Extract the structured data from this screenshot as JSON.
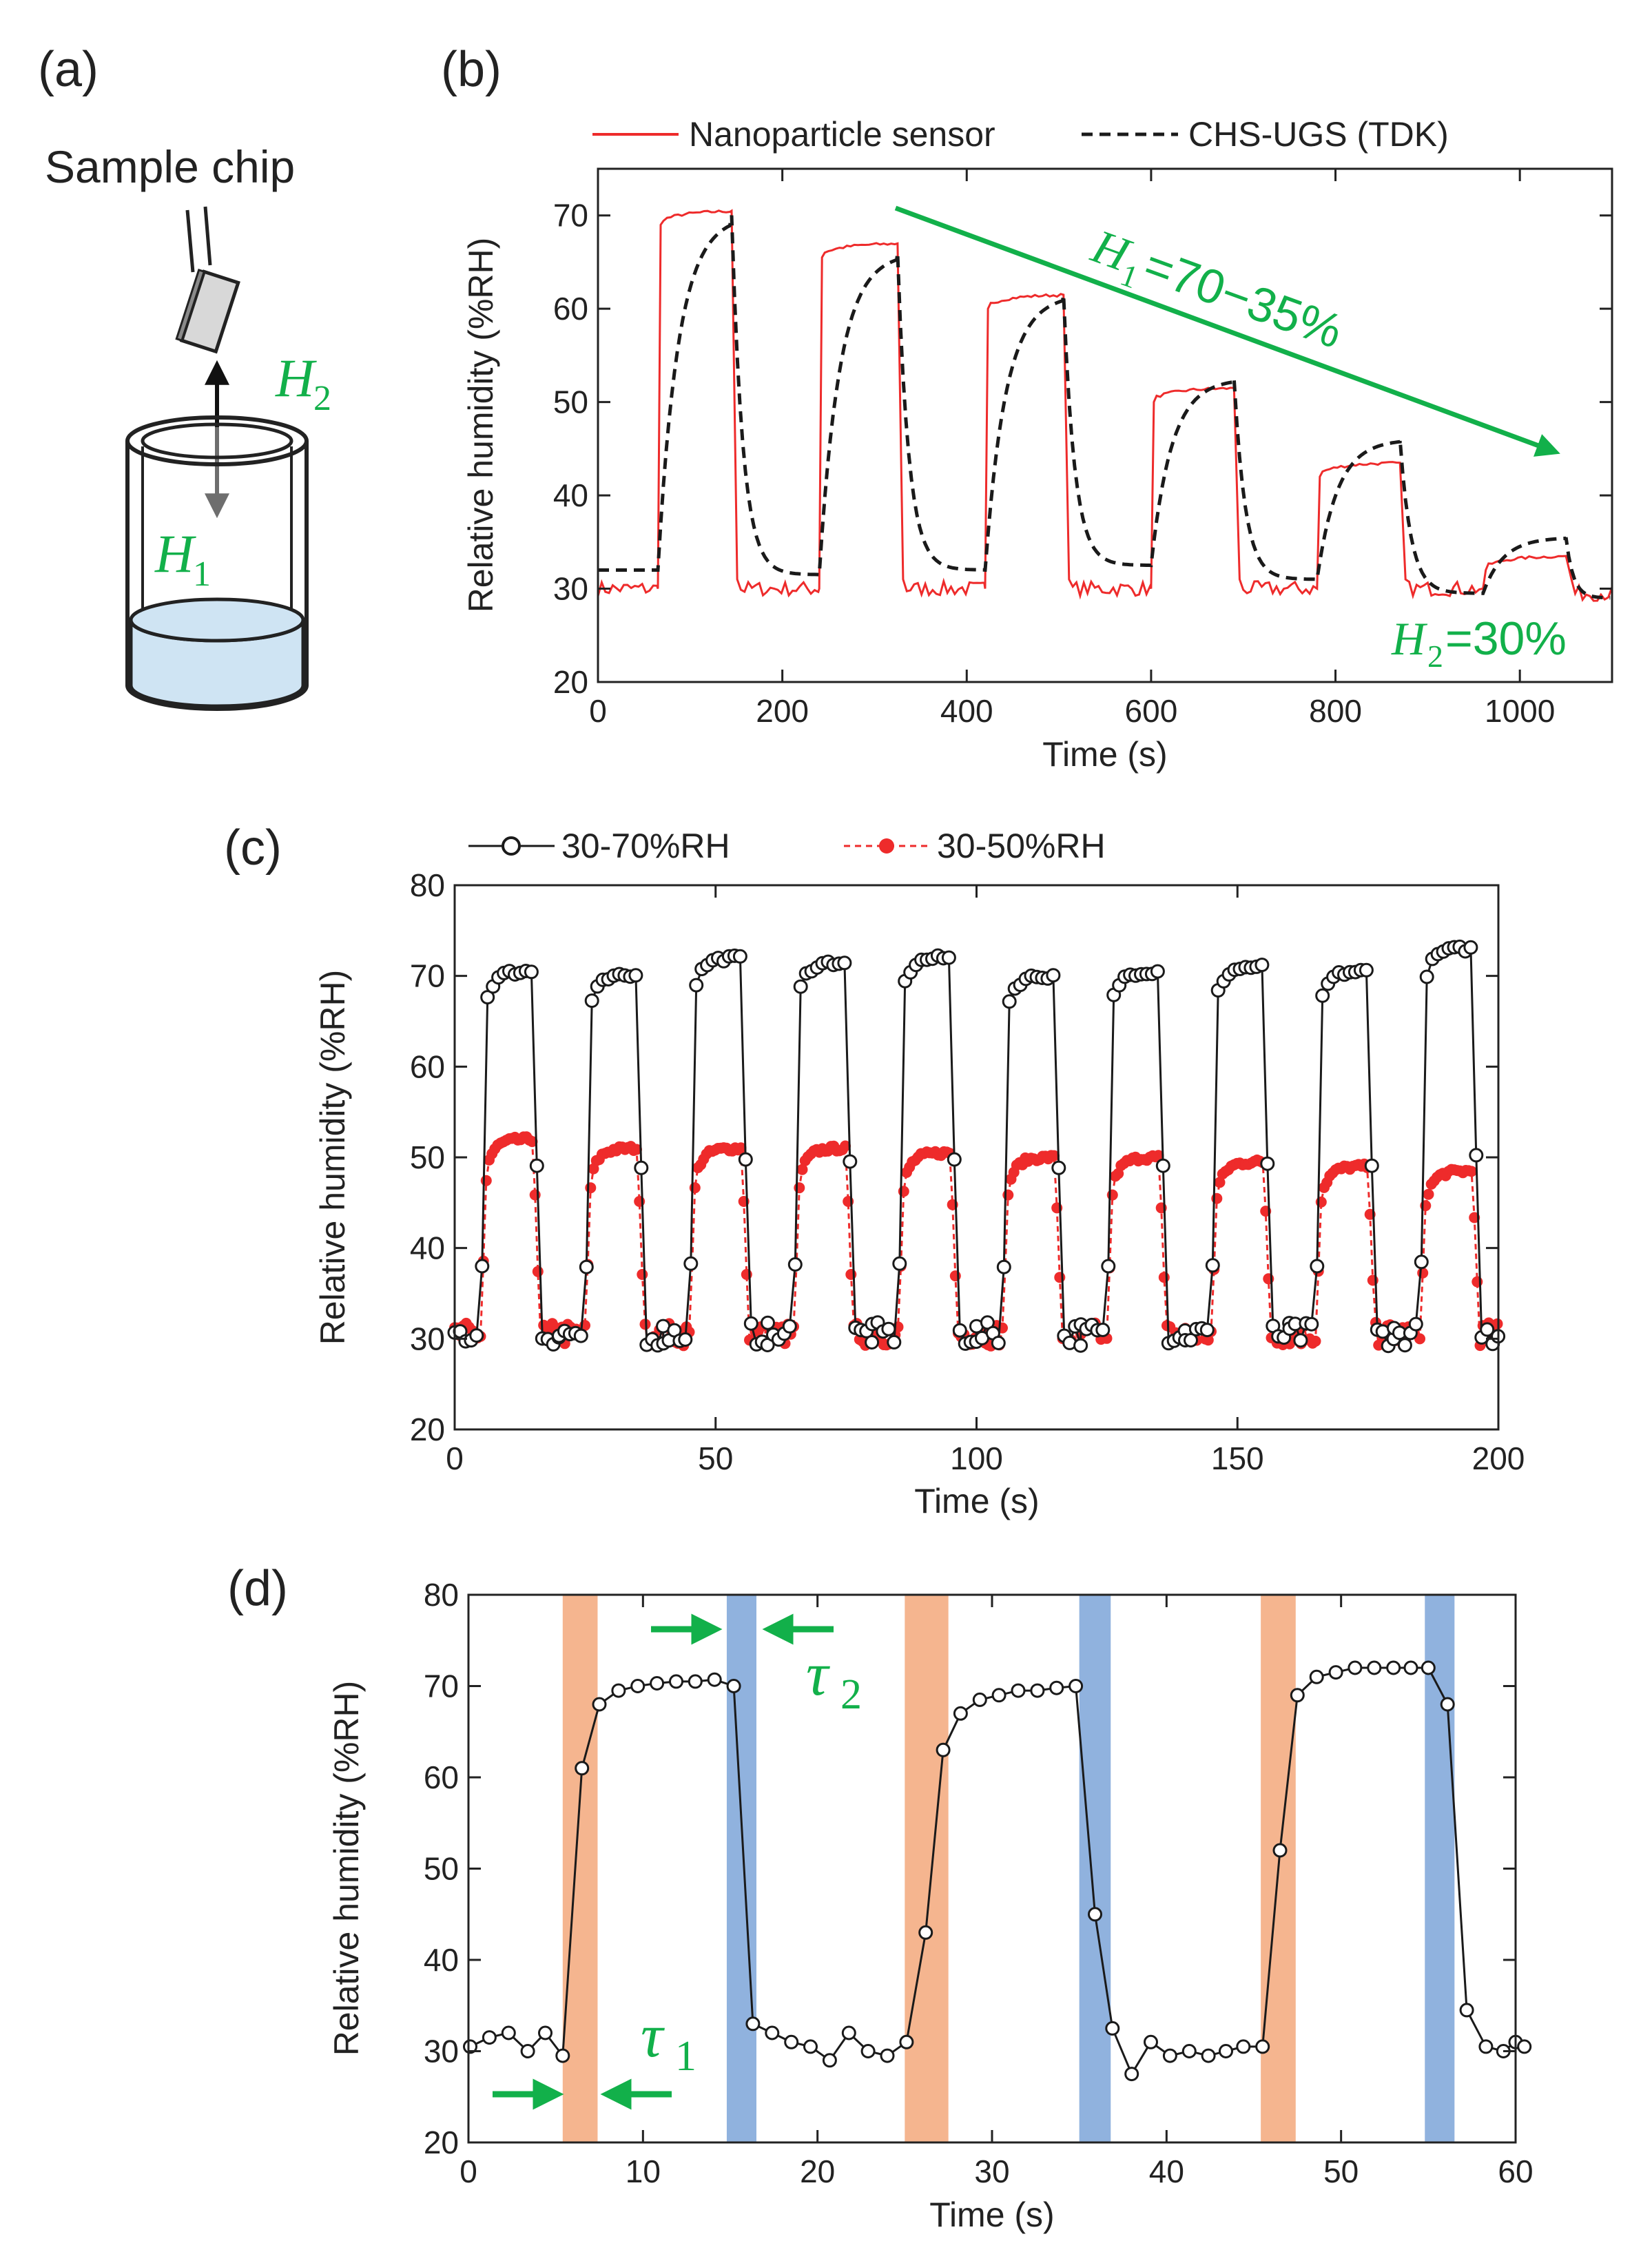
{
  "colors": {
    "green": "#12b04a",
    "red": "#ee2b2b",
    "black": "#1a1a1a",
    "orange_band": "#f5b58f",
    "blue_band": "#90b2de",
    "water": "#cfe4f3",
    "gray_arrow": "#6e6e6e"
  },
  "panel_a": {
    "label": "(a)",
    "sample_chip": "Sample chip",
    "h2_main": "H",
    "h2_sub": "2",
    "h1_main": "H",
    "h1_sub": "1"
  },
  "chart_data": [
    {
      "id": "b",
      "panel_label": "(b)",
      "type": "line",
      "xlabel": "Time (s)",
      "ylabel": "Relative humidity (%RH)",
      "xlim": [
        0,
        1100
      ],
      "ylim": [
        20,
        75
      ],
      "xticks": [
        0,
        200,
        400,
        600,
        800,
        1000
      ],
      "yticks": [
        20,
        30,
        40,
        50,
        60,
        70
      ],
      "legend": [
        "Nanoparticle sensor",
        "CHS-UGS (TDK)"
      ],
      "annotation_h1": {
        "main": "H",
        "sub": "1",
        "rest": "=70−35%"
      },
      "annotation_h2": {
        "main": "H",
        "sub": "2",
        "rest": "=30%"
      },
      "steps": [
        {
          "start": 65,
          "end": 145,
          "sensor_high": 70.5,
          "ref_high": 70
        },
        {
          "start": 240,
          "end": 325,
          "sensor_high": 67,
          "ref_high": 66
        },
        {
          "start": 420,
          "end": 505,
          "sensor_high": 61.5,
          "ref_high": 61.5
        },
        {
          "start": 600,
          "end": 690,
          "sensor_high": 51.5,
          "ref_high": 52.5
        },
        {
          "start": 780,
          "end": 870,
          "sensor_high": 43.5,
          "ref_high": 46
        },
        {
          "start": 960,
          "end": 1050,
          "sensor_high": 33.5,
          "ref_high": 35.5
        }
      ],
      "sensor_baseline": 30,
      "ref_baseline": [
        32,
        31.5,
        32,
        32.5,
        31,
        29.5,
        29
      ]
    },
    {
      "id": "c",
      "panel_label": "(c)",
      "type": "line",
      "xlabel": "Time (s)",
      "ylabel": "Relative humidity (%RH)",
      "xlim": [
        0,
        200
      ],
      "ylim": [
        20,
        80
      ],
      "xticks": [
        0,
        50,
        100,
        150,
        200
      ],
      "yticks": [
        20,
        30,
        40,
        50,
        60,
        70,
        80
      ],
      "legend": [
        "30-70%RH",
        "30-50%RH"
      ],
      "period": 20,
      "rise_start": 5,
      "fall_start": 15,
      "high_70": [
        70.5,
        70,
        72,
        71.5,
        72,
        70,
        70.5,
        71,
        70.5,
        73
      ],
      "high_50": [
        52,
        51,
        51,
        51,
        50.5,
        50,
        50,
        49.5,
        49,
        48.5
      ],
      "low": 30.5
    },
    {
      "id": "d",
      "panel_label": "(d)",
      "type": "line",
      "xlabel": "Time (s)",
      "ylabel": "Relative humidity (%RH)",
      "xlim": [
        0,
        60
      ],
      "ylim": [
        20,
        80
      ],
      "xticks": [
        0,
        10,
        20,
        30,
        40,
        50,
        60
      ],
      "yticks": [
        20,
        30,
        40,
        50,
        60,
        70,
        80
      ],
      "tau1": {
        "main": "τ",
        "sub": "1"
      },
      "tau2": {
        "main": "τ",
        "sub": "2"
      },
      "rise_bands": [
        [
          5.4,
          7.4
        ],
        [
          25.0,
          27.5
        ],
        [
          45.4,
          47.4
        ]
      ],
      "fall_bands": [
        [
          14.8,
          16.5
        ],
        [
          35.0,
          36.8
        ],
        [
          54.8,
          56.5
        ]
      ],
      "points": [
        [
          0.1,
          30.5
        ],
        [
          1.2,
          31.5
        ],
        [
          2.3,
          32
        ],
        [
          3.4,
          30
        ],
        [
          4.4,
          32
        ],
        [
          5.4,
          29.5
        ],
        [
          6.5,
          61
        ],
        [
          7.5,
          68
        ],
        [
          8.6,
          69.5
        ],
        [
          9.7,
          70
        ],
        [
          10.8,
          70.3
        ],
        [
          11.9,
          70.5
        ],
        [
          13.0,
          70.5
        ],
        [
          14.1,
          70.7
        ],
        [
          15.2,
          70
        ],
        [
          16.3,
          33
        ],
        [
          17.4,
          32
        ],
        [
          18.5,
          31
        ],
        [
          19.6,
          30.5
        ],
        [
          20.7,
          29
        ],
        [
          21.8,
          32
        ],
        [
          22.9,
          30
        ],
        [
          24.0,
          29.5
        ],
        [
          25.1,
          31
        ],
        [
          26.2,
          43
        ],
        [
          27.2,
          63
        ],
        [
          28.2,
          67
        ],
        [
          29.3,
          68.5
        ],
        [
          30.4,
          69
        ],
        [
          31.5,
          69.5
        ],
        [
          32.6,
          69.5
        ],
        [
          33.7,
          69.8
        ],
        [
          34.8,
          70
        ],
        [
          35.9,
          45
        ],
        [
          36.9,
          32.5
        ],
        [
          38.0,
          27.5
        ],
        [
          39.1,
          31
        ],
        [
          40.2,
          29.5
        ],
        [
          41.3,
          30
        ],
        [
          42.4,
          29.5
        ],
        [
          43.4,
          30
        ],
        [
          44.4,
          30.5
        ],
        [
          45.5,
          30.5
        ],
        [
          46.5,
          52
        ],
        [
          47.5,
          69
        ],
        [
          48.6,
          71
        ],
        [
          49.7,
          71.5
        ],
        [
          50.8,
          72
        ],
        [
          51.9,
          72
        ],
        [
          53.0,
          72
        ],
        [
          54.0,
          72
        ],
        [
          55.0,
          72
        ],
        [
          56.1,
          68
        ],
        [
          57.2,
          34.5
        ],
        [
          58.3,
          30.5
        ],
        [
          59.3,
          30
        ],
        [
          60.0,
          31
        ],
        [
          60.5,
          30.5
        ]
      ]
    }
  ]
}
